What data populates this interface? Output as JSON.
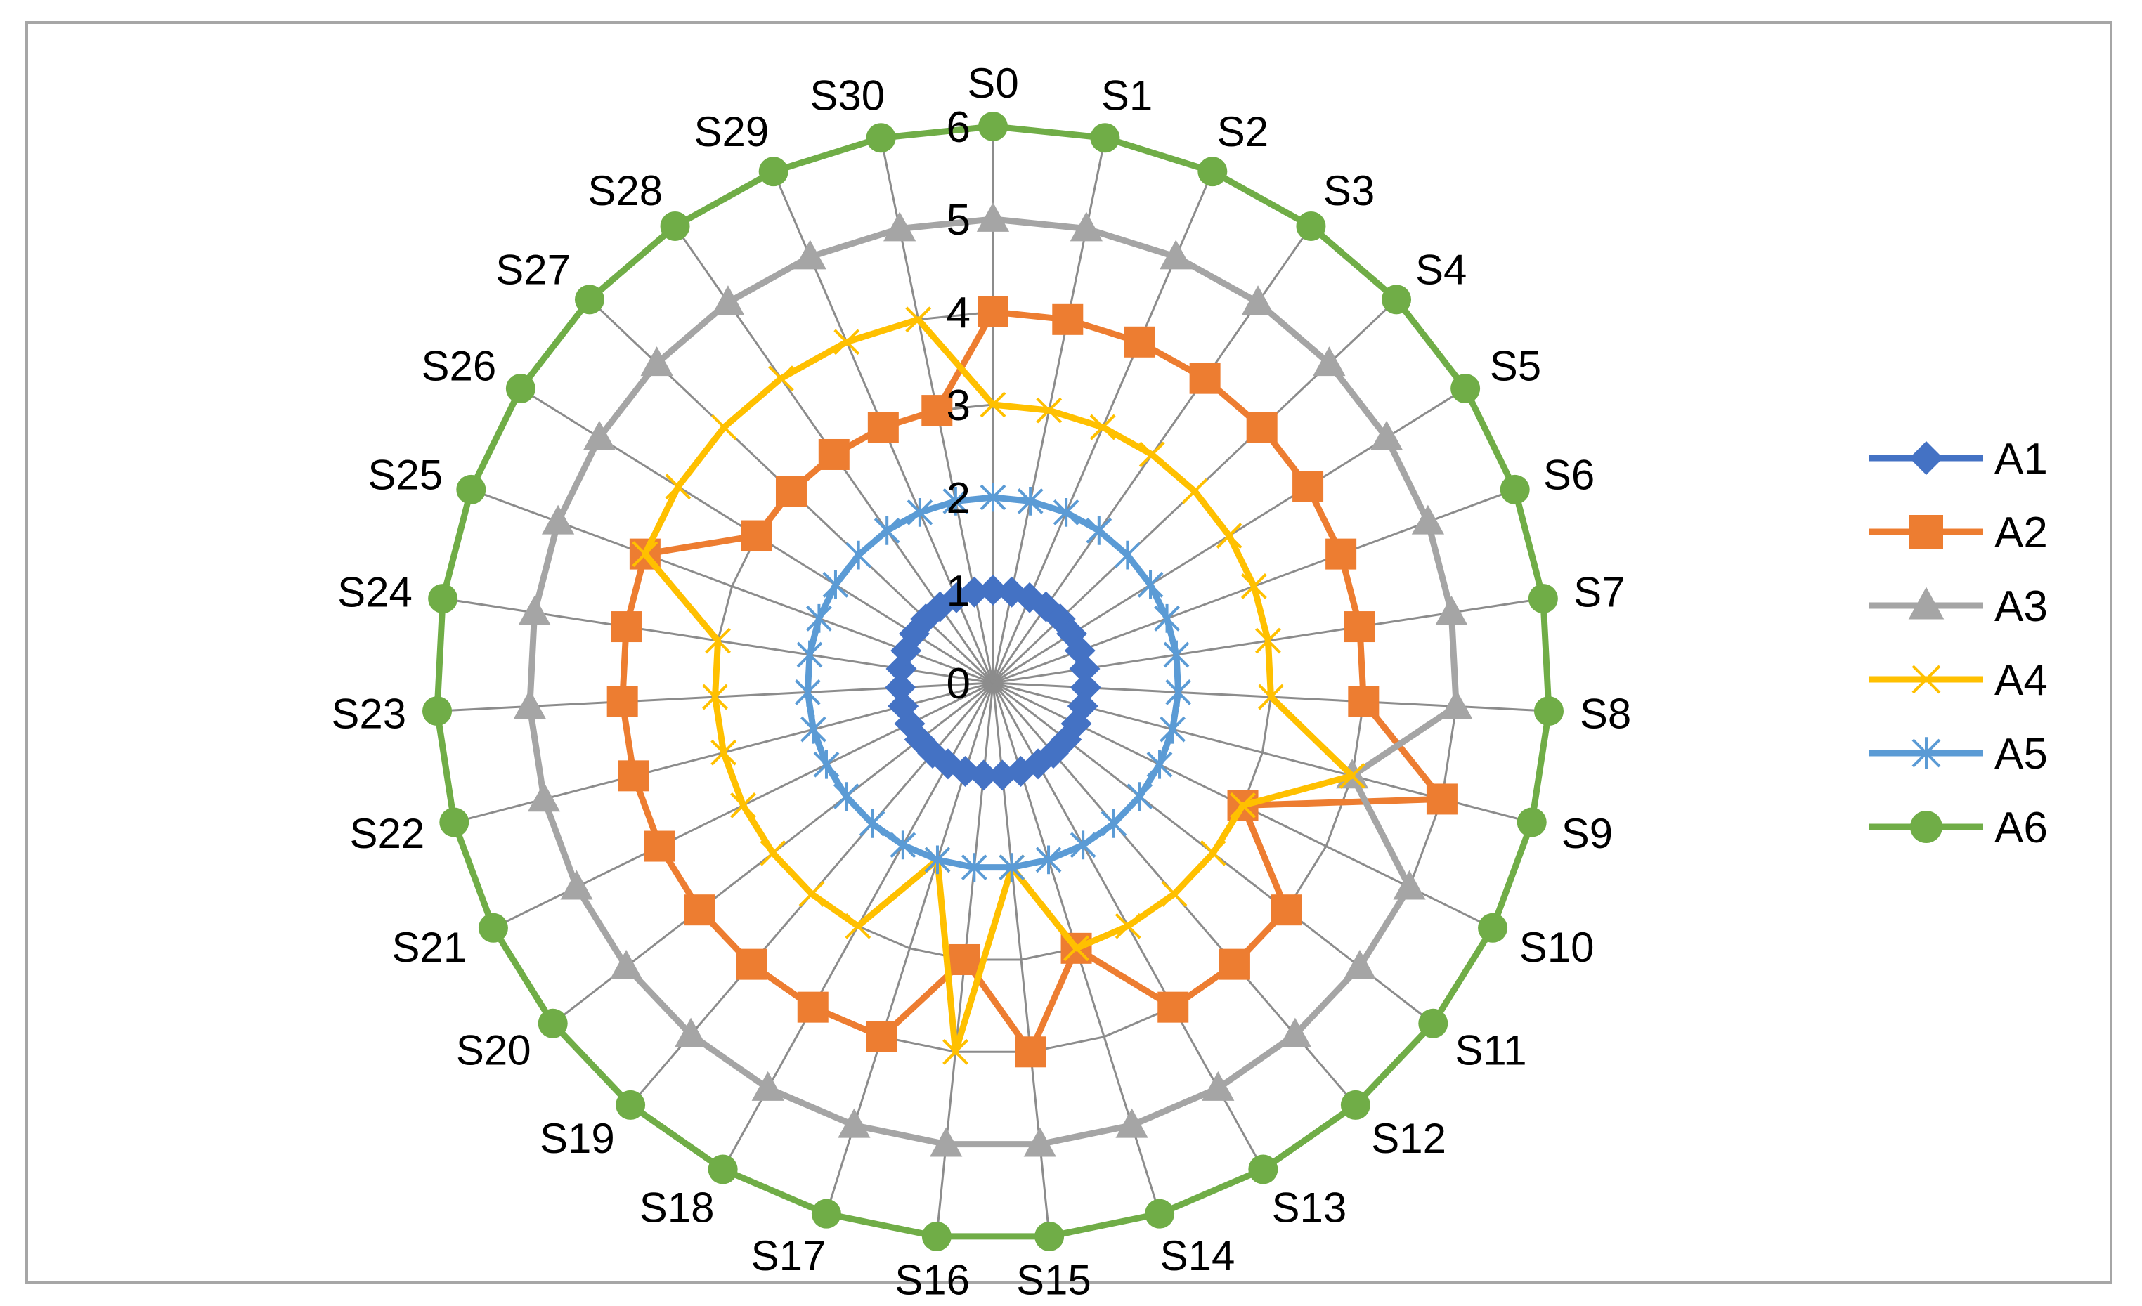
{
  "chart_data": {
    "type": "radar",
    "title": "",
    "categories": [
      "S0",
      "S1",
      "S2",
      "S3",
      "S4",
      "S5",
      "S6",
      "S7",
      "S8",
      "S9",
      "S10",
      "S11",
      "S12",
      "S13",
      "S14",
      "S15",
      "S16",
      "S17",
      "S18",
      "S19",
      "S20",
      "S21",
      "S22",
      "S23",
      "S24",
      "S25",
      "S26",
      "S27",
      "S28",
      "S29",
      "S30"
    ],
    "rlim": [
      0,
      6
    ],
    "ticks": [
      "0",
      "1",
      "2",
      "3",
      "4",
      "5",
      "6"
    ],
    "grid": true,
    "legend_position": "right",
    "series": [
      {
        "name": "A1",
        "color": "#4472c4",
        "marker": "diamond",
        "values": [
          1,
          1,
          1,
          1,
          1,
          1,
          1,
          1,
          1,
          1,
          1,
          1,
          1,
          1,
          1,
          1,
          1,
          1,
          1,
          1,
          1,
          1,
          1,
          1,
          1,
          1,
          1,
          1,
          1,
          1,
          1
        ]
      },
      {
        "name": "A2",
        "color": "#ed7d31",
        "marker": "square",
        "values": [
          4,
          4,
          4,
          4,
          4,
          4,
          4,
          4,
          4,
          5,
          3,
          4,
          4,
          4,
          3,
          4,
          3,
          4,
          4,
          4,
          4,
          4,
          4,
          4,
          4,
          4,
          3,
          3,
          3,
          3,
          3
        ]
      },
      {
        "name": "A3",
        "color": "#a5a5a5",
        "marker": "triangle",
        "values": [
          5,
          5,
          5,
          5,
          5,
          5,
          5,
          5,
          5,
          4,
          5,
          5,
          5,
          5,
          5,
          5,
          5,
          5,
          5,
          5,
          5,
          5,
          5,
          5,
          5,
          5,
          5,
          5,
          5,
          5,
          5
        ]
      },
      {
        "name": "A4",
        "color": "#ffc000",
        "marker": "x",
        "values": [
          3,
          3,
          3,
          3,
          3,
          3,
          3,
          3,
          3,
          4,
          3,
          3,
          3,
          3,
          3,
          2,
          4,
          2,
          3,
          3,
          3,
          3,
          3,
          3,
          3,
          4,
          4,
          4,
          4,
          4,
          4
        ]
      },
      {
        "name": "A5",
        "color": "#5b9bd5",
        "marker": "star",
        "values": [
          2,
          2,
          2,
          2,
          2,
          2,
          2,
          2,
          2,
          2,
          2,
          2,
          2,
          2,
          2,
          2,
          2,
          2,
          2,
          2,
          2,
          2,
          2,
          2,
          2,
          2,
          2,
          2,
          2,
          2,
          2
        ]
      },
      {
        "name": "A6",
        "color": "#70ad47",
        "marker": "circle",
        "values": [
          6,
          6,
          6,
          6,
          6,
          6,
          6,
          6,
          6,
          6,
          6,
          6,
          6,
          6,
          6,
          6,
          6,
          6,
          6,
          6,
          6,
          6,
          6,
          6,
          6,
          6,
          6,
          6,
          6,
          6,
          6
        ]
      }
    ]
  }
}
